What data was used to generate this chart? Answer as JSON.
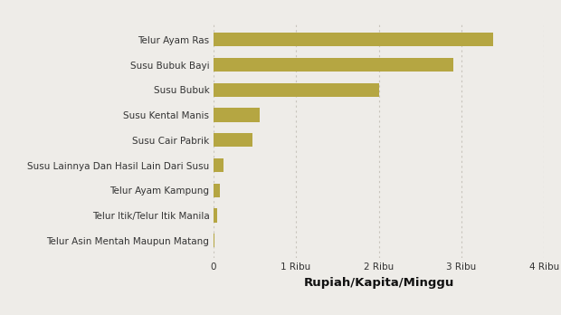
{
  "categories": [
    "Telur Asin Mentah Maupun Matang",
    "Telur Itik/Telur Itik Manila",
    "Telur Ayam Kampung",
    "Susu Lainnya Dan Hasil Lain Dari Susu",
    "Susu Cair Pabrik",
    "Susu Kental Manis",
    "Susu Bubuk",
    "Susu Bubuk Bayi",
    "Telur Ayam Ras"
  ],
  "values": [
    20,
    50,
    80,
    130,
    480,
    560,
    2000,
    2900,
    3380
  ],
  "bar_color": "#b5a642",
  "background_color": "#eeece8",
  "xlabel": "Rupiah/Kapita/Minggu",
  "xlim": [
    0,
    4000
  ],
  "xticks": [
    0,
    1000,
    2000,
    3000,
    4000
  ],
  "xtick_labels": [
    "0",
    "1 Ribu",
    "2 Ribu",
    "3 Ribu",
    "4 Ribu"
  ],
  "grid_color": "#c8c4bc",
  "label_fontsize": 7.5,
  "xlabel_fontsize": 9.5
}
